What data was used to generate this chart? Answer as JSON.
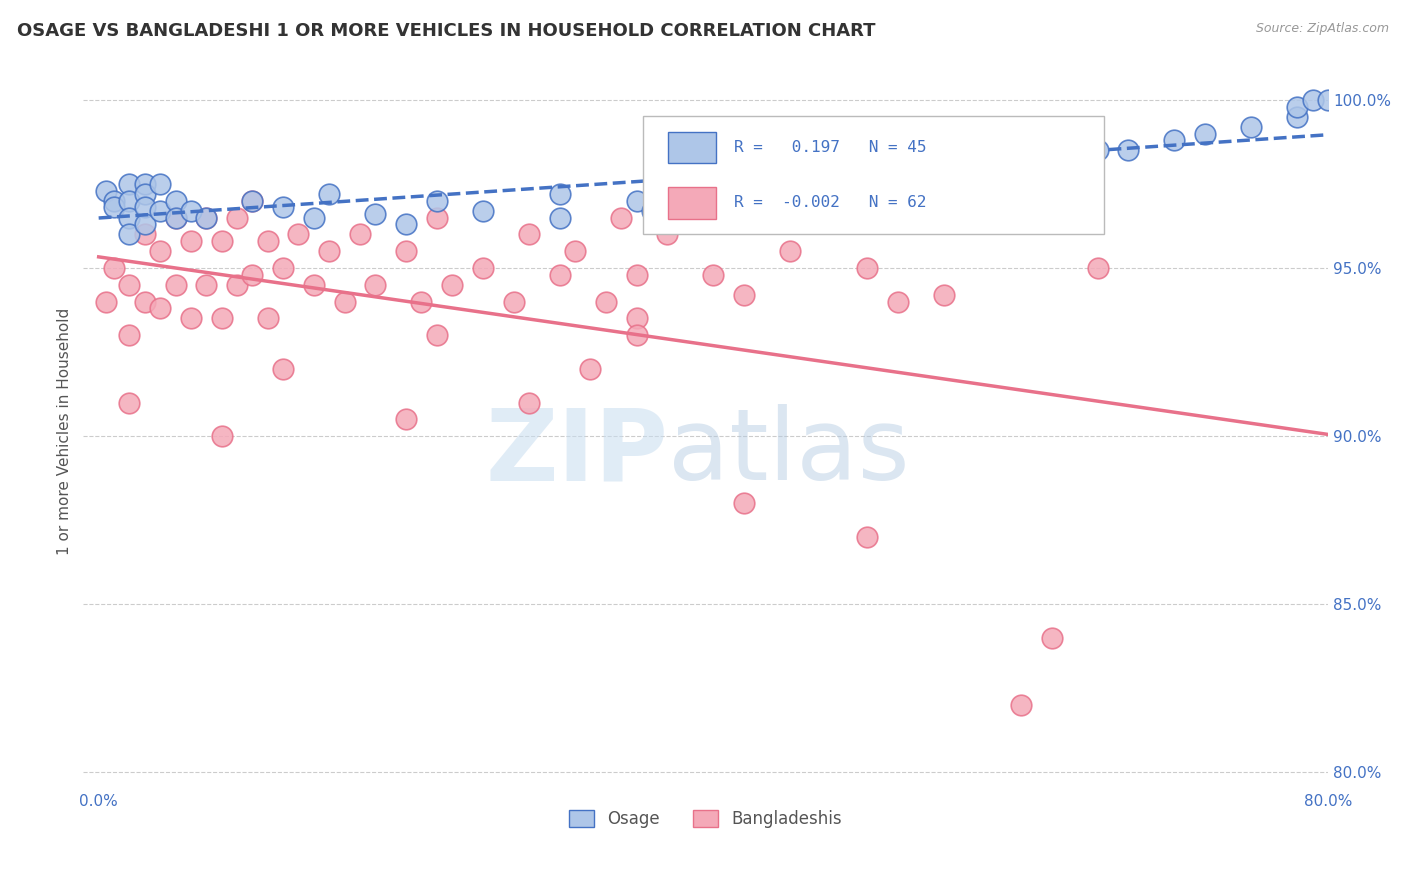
{
  "title": "OSAGE VS BANGLADESHI 1 OR MORE VEHICLES IN HOUSEHOLD CORRELATION CHART",
  "source": "Source: ZipAtlas.com",
  "ylabel": "1 or more Vehicles in Household",
  "xlim": [
    -0.01,
    0.8
  ],
  "ylim": [
    0.795,
    1.008
  ],
  "xticks": [
    0.0,
    0.2,
    0.4,
    0.6,
    0.8
  ],
  "xticklabels": [
    "0.0%",
    "",
    "",
    "",
    "80.0%"
  ],
  "yticks": [
    0.8,
    0.85,
    0.9,
    0.95,
    1.0
  ],
  "yticklabels": [
    "80.0%",
    "85.0%",
    "90.0%",
    "95.0%",
    "100.0%"
  ],
  "legend_entries": [
    {
      "label": "Osage",
      "color": "#aec6e8",
      "edge": "#4472c4",
      "R": "0.197",
      "N": "45"
    },
    {
      "label": "Bangladeshis",
      "color": "#f4a9b8",
      "edge": "#e8718a",
      "R": "-0.002",
      "N": "62"
    }
  ],
  "osage_x": [
    0.005,
    0.01,
    0.01,
    0.02,
    0.02,
    0.02,
    0.02,
    0.03,
    0.03,
    0.03,
    0.03,
    0.04,
    0.04,
    0.05,
    0.05,
    0.06,
    0.07,
    0.1,
    0.12,
    0.14,
    0.15,
    0.18,
    0.2,
    0.22,
    0.25,
    0.3,
    0.3,
    0.35,
    0.36,
    0.4,
    0.42,
    0.44,
    0.5,
    0.54,
    0.56,
    0.6,
    0.65,
    0.67,
    0.7,
    0.72,
    0.75,
    0.78,
    0.78,
    0.79,
    0.8
  ],
  "osage_y": [
    0.973,
    0.97,
    0.968,
    0.975,
    0.97,
    0.965,
    0.96,
    0.975,
    0.972,
    0.968,
    0.963,
    0.975,
    0.967,
    0.97,
    0.965,
    0.967,
    0.965,
    0.97,
    0.968,
    0.965,
    0.972,
    0.966,
    0.963,
    0.97,
    0.967,
    0.972,
    0.965,
    0.97,
    0.967,
    0.972,
    0.97,
    0.968,
    0.972,
    0.975,
    0.978,
    0.98,
    0.985,
    0.985,
    0.988,
    0.99,
    0.992,
    0.995,
    0.998,
    1.0,
    1.0
  ],
  "bangladeshi_x": [
    0.005,
    0.01,
    0.02,
    0.02,
    0.03,
    0.03,
    0.04,
    0.04,
    0.05,
    0.05,
    0.06,
    0.06,
    0.07,
    0.07,
    0.08,
    0.08,
    0.09,
    0.09,
    0.1,
    0.1,
    0.11,
    0.11,
    0.12,
    0.13,
    0.14,
    0.15,
    0.16,
    0.17,
    0.18,
    0.2,
    0.21,
    0.22,
    0.23,
    0.25,
    0.27,
    0.28,
    0.3,
    0.31,
    0.33,
    0.34,
    0.35,
    0.35,
    0.37,
    0.4,
    0.42,
    0.45,
    0.5,
    0.55,
    0.02,
    0.08,
    0.12,
    0.2,
    0.22,
    0.28,
    0.32,
    0.35,
    0.42,
    0.5,
    0.52,
    0.6,
    0.62,
    0.65
  ],
  "bangladeshi_y": [
    0.94,
    0.95,
    0.945,
    0.93,
    0.96,
    0.94,
    0.955,
    0.938,
    0.965,
    0.945,
    0.958,
    0.935,
    0.965,
    0.945,
    0.958,
    0.935,
    0.965,
    0.945,
    0.97,
    0.948,
    0.958,
    0.935,
    0.95,
    0.96,
    0.945,
    0.955,
    0.94,
    0.96,
    0.945,
    0.955,
    0.94,
    0.965,
    0.945,
    0.95,
    0.94,
    0.96,
    0.948,
    0.955,
    0.94,
    0.965,
    0.948,
    0.935,
    0.96,
    0.948,
    0.942,
    0.955,
    0.95,
    0.942,
    0.91,
    0.9,
    0.92,
    0.905,
    0.93,
    0.91,
    0.92,
    0.93,
    0.88,
    0.87,
    0.94,
    0.82,
    0.84,
    0.95
  ],
  "osage_line_color": "#4472c4",
  "bangladeshi_line_color": "#e8718a",
  "watermark_zip": "ZIP",
  "watermark_atlas": "atlas",
  "background_color": "#ffffff",
  "grid_color": "#cccccc"
}
